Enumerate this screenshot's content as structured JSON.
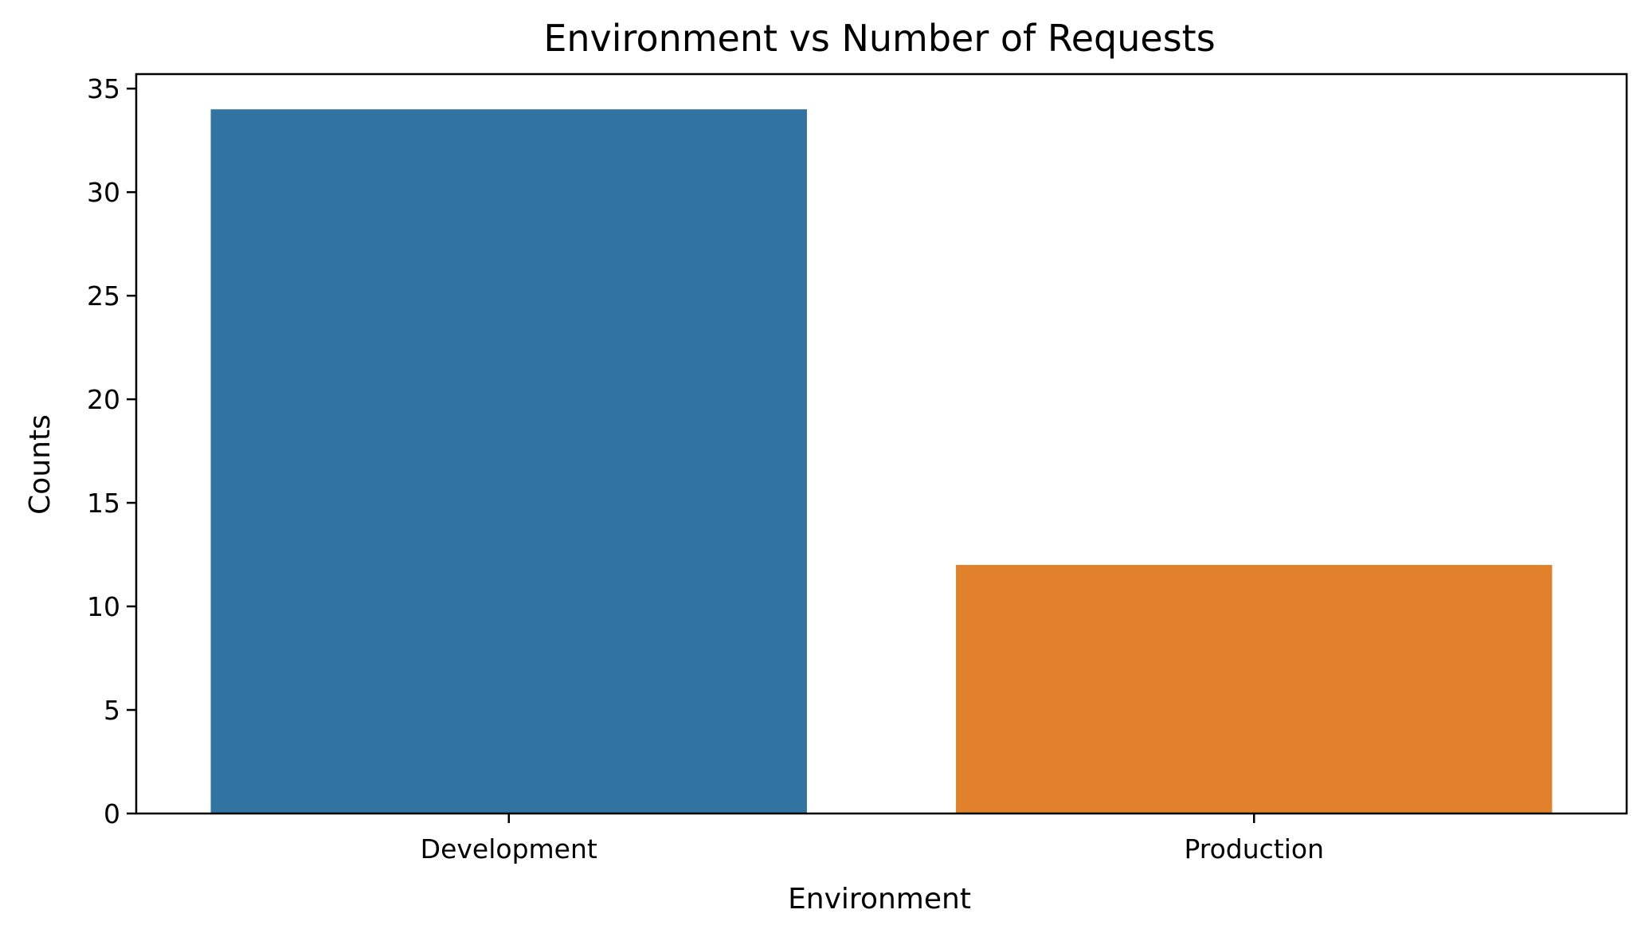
{
  "chart_data": {
    "type": "bar",
    "title": "Environment vs Number of Requests",
    "xlabel": "Environment",
    "ylabel": "Counts",
    "categories": [
      "Development",
      "Production"
    ],
    "values": [
      34,
      12
    ],
    "colors": [
      "#3274a1",
      "#e1812c"
    ],
    "ylim": [
      0,
      35.7
    ],
    "yticks": [
      0,
      5,
      10,
      15,
      20,
      25,
      30,
      35
    ],
    "grid": false
  }
}
